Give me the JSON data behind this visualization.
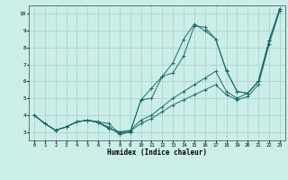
{
  "title": "",
  "xlabel": "Humidex (Indice chaleur)",
  "bg_color": "#cceee8",
  "grid_color": "#aacccc",
  "line_color": "#1a6b6b",
  "xlim": [
    -0.5,
    23.5
  ],
  "ylim": [
    2.5,
    10.5
  ],
  "xticks": [
    0,
    1,
    2,
    3,
    4,
    5,
    6,
    7,
    8,
    9,
    10,
    11,
    12,
    13,
    14,
    15,
    16,
    17,
    18,
    19,
    20,
    21,
    22,
    23
  ],
  "yticks": [
    3,
    4,
    5,
    6,
    7,
    8,
    9,
    10
  ],
  "lines": [
    {
      "x": [
        0,
        1,
        2,
        3,
        4,
        5,
        6,
        7,
        8,
        9,
        10,
        11,
        12,
        13,
        14,
        15,
        16,
        17,
        18,
        19,
        20,
        21,
        22,
        23
      ],
      "y": [
        4.0,
        3.5,
        3.1,
        3.3,
        3.6,
        3.7,
        3.6,
        3.5,
        2.9,
        3.0,
        4.9,
        5.0,
        6.3,
        6.5,
        7.5,
        9.3,
        9.2,
        8.5,
        6.6,
        5.4,
        5.3,
        6.0,
        8.4,
        10.3
      ]
    },
    {
      "x": [
        0,
        1,
        2,
        3,
        4,
        5,
        6,
        7,
        8,
        9,
        10,
        11,
        12,
        13,
        14,
        15,
        16,
        17,
        18,
        19,
        20,
        21,
        22,
        23
      ],
      "y": [
        4.0,
        3.5,
        3.1,
        3.3,
        3.6,
        3.7,
        3.6,
        3.2,
        3.0,
        3.1,
        3.7,
        4.0,
        4.5,
        5.0,
        5.4,
        5.8,
        6.2,
        6.6,
        5.4,
        5.0,
        5.3,
        6.0,
        8.4,
        10.3
      ]
    },
    {
      "x": [
        0,
        1,
        2,
        3,
        4,
        5,
        6,
        7,
        8,
        9,
        10,
        11,
        12,
        13,
        14,
        15,
        16,
        17,
        18,
        19,
        20,
        21,
        22,
        23
      ],
      "y": [
        4.0,
        3.5,
        3.1,
        3.3,
        3.6,
        3.7,
        3.55,
        3.2,
        3.0,
        3.05,
        3.5,
        3.8,
        4.2,
        4.6,
        4.9,
        5.2,
        5.5,
        5.8,
        5.2,
        4.9,
        5.1,
        5.8,
        8.2,
        10.2
      ]
    },
    {
      "x": [
        0,
        1,
        2,
        3,
        4,
        5,
        6,
        7,
        8,
        9,
        10,
        11,
        12,
        13,
        14,
        15,
        16,
        17,
        18,
        19,
        20,
        21,
        22,
        23
      ],
      "y": [
        4.0,
        3.5,
        3.1,
        3.3,
        3.6,
        3.7,
        3.55,
        3.3,
        2.85,
        3.0,
        4.9,
        5.6,
        6.3,
        7.1,
        8.5,
        9.4,
        9.0,
        8.5,
        6.65,
        5.4,
        5.3,
        6.0,
        8.4,
        10.3
      ]
    }
  ]
}
